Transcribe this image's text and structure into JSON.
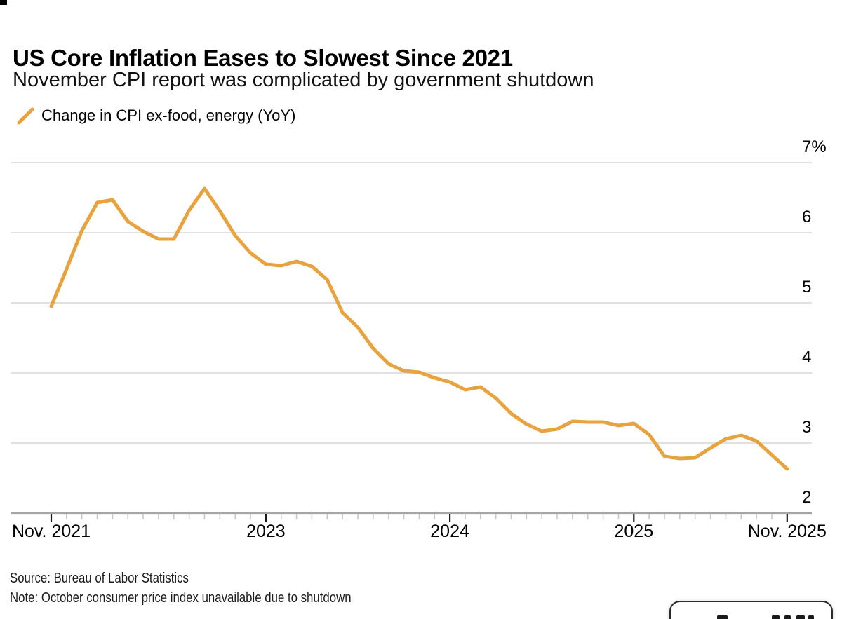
{
  "header": {
    "title": "US Core Inflation Eases to Slowest Since 2021",
    "subtitle": "November CPI report was complicated by government shutdown"
  },
  "legend": {
    "label": "Change in CPI ex-food, energy (YoY)",
    "marker": "orange-slash"
  },
  "footer": {
    "source": "Source: Bureau of Labor Statistics",
    "note": "Note: October consumer price index unavailable due to shutdown"
  },
  "colors": {
    "line": "#E8A33E",
    "grid": "#D7D7D7",
    "axis": "#A6A6A6",
    "major_tick": "#1A1A1A",
    "minor_tick": "#C9C9C9",
    "text": "#000000",
    "background": "#FFFFFF"
  },
  "chart_data": {
    "type": "line",
    "title": "Change in CPI ex-food, energy (YoY)",
    "ylabel": "%",
    "ylim": [
      2,
      7
    ],
    "yticks": [
      2,
      3,
      4,
      5,
      6,
      7
    ],
    "ytick_labels": [
      "2",
      "3",
      "4",
      "5",
      "6",
      "7%"
    ],
    "grid": "horizontal",
    "legend_position": "top-left",
    "x_unit": "month",
    "x_start": "Nov 2021",
    "x_end": "Nov 2025",
    "xticks": [
      {
        "month_index": 0,
        "label": "Nov. 2021"
      },
      {
        "month_index": 14,
        "label": "2023"
      },
      {
        "month_index": 26,
        "label": "2024"
      },
      {
        "month_index": 38,
        "label": "2025"
      },
      {
        "month_index": 48,
        "label": "Nov. 2025"
      }
    ],
    "missing_data_note": "Oct 2025 (month_index 47) unavailable due to government shutdown; line connects Sep 2025 directly to Nov 2025",
    "values_pct_yoy": [
      4.95,
      5.48,
      6.03,
      6.43,
      6.47,
      6.16,
      6.02,
      5.91,
      5.91,
      6.32,
      6.63,
      6.31,
      5.96,
      5.71,
      5.55,
      5.53,
      5.59,
      5.52,
      5.33,
      4.86,
      4.65,
      4.35,
      4.13,
      4.03,
      4.01,
      3.93,
      3.87,
      3.76,
      3.8,
      3.64,
      3.42,
      3.27,
      3.17,
      3.2,
      3.31,
      3.3,
      3.3,
      3.25,
      3.28,
      3.12,
      2.81,
      2.78,
      2.79,
      2.93,
      3.06,
      3.11,
      3.03,
      null,
      2.63
    ]
  }
}
